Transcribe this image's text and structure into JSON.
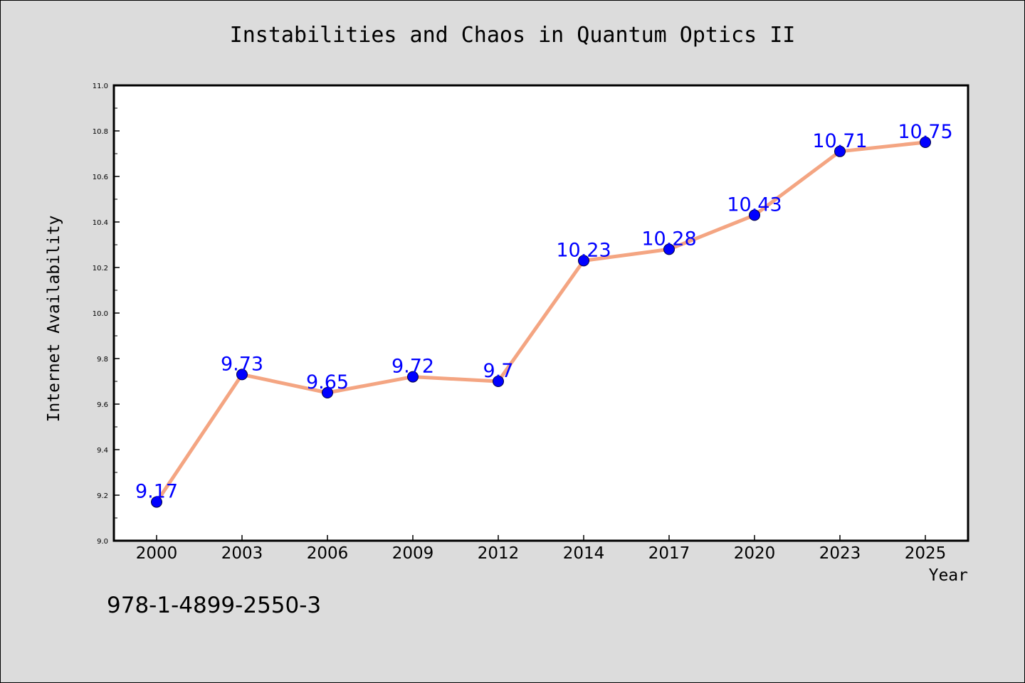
{
  "chart_data": {
    "type": "line",
    "title": "Instabilities and Chaos in Quantum Optics II",
    "xlabel": "Year",
    "ylabel": "Internet Availability",
    "categories": [
      "2000",
      "2003",
      "2006",
      "2009",
      "2012",
      "2014",
      "2017",
      "2020",
      "2023",
      "2025"
    ],
    "series": [
      {
        "values": [
          9.17,
          9.73,
          9.65,
          9.72,
          9.7,
          10.23,
          10.28,
          10.43,
          10.71,
          10.75
        ],
        "data_labels": [
          "9.17",
          "9.73",
          "9.65",
          "9.72",
          "9.7",
          "10.23",
          "10.28",
          "10.43",
          "10.71",
          "10.75"
        ]
      }
    ],
    "ylim": [
      9.0,
      11.0
    ],
    "yticks": [
      "9.0",
      "9.2",
      "9.4",
      "9.6",
      "9.8",
      "10.0",
      "10.2",
      "10.4",
      "10.6",
      "10.8",
      "11.0"
    ],
    "grid": false,
    "line_color": "#f4a582",
    "marker_color": "#0000ff",
    "label_color": "#0000ff",
    "background_color": "#dcdcdc",
    "plot_background_color": "#ffffff"
  },
  "footer": {
    "isbn": "978-1-4899-2550-3"
  }
}
